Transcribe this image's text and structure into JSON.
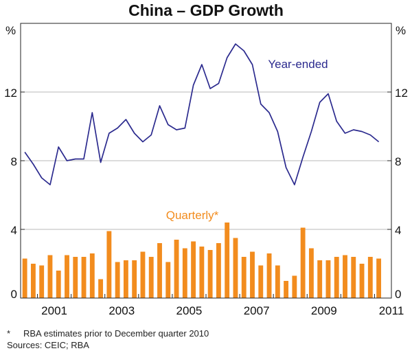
{
  "chart_data": {
    "type": "bar+line",
    "title": "China – GDP Growth",
    "unit_left": "%",
    "unit_right": "%",
    "ylim": [
      0,
      16
    ],
    "yticks": [
      0,
      4,
      8,
      12
    ],
    "xticks": [
      "2001",
      "2003",
      "2005",
      "2007",
      "2009",
      "2011"
    ],
    "xlim": [
      2000.5,
      2011.5
    ],
    "grid": true,
    "series": [
      {
        "name": "Year-ended",
        "type": "line",
        "color": "#2b2a8e",
        "x": [
          2000.625,
          2000.875,
          2001.125,
          2001.375,
          2001.625,
          2001.875,
          2002.125,
          2002.375,
          2002.625,
          2002.875,
          2003.125,
          2003.375,
          2003.625,
          2003.875,
          2004.125,
          2004.375,
          2004.625,
          2004.875,
          2005.125,
          2005.375,
          2005.625,
          2005.875,
          2006.125,
          2006.375,
          2006.625,
          2006.875,
          2007.125,
          2007.375,
          2007.625,
          2007.875,
          2008.125,
          2008.375,
          2008.625,
          2008.875,
          2009.125,
          2009.375,
          2009.625,
          2009.875,
          2010.125,
          2010.375,
          2010.625,
          2010.875,
          2011.125
        ],
        "values": [
          8.5,
          7.8,
          7.0,
          6.6,
          8.8,
          8.0,
          8.1,
          8.1,
          10.8,
          7.9,
          9.6,
          9.9,
          10.4,
          9.6,
          9.1,
          9.5,
          11.2,
          10.1,
          9.8,
          9.9,
          12.4,
          13.6,
          12.2,
          12.5,
          14.0,
          14.8,
          14.4,
          13.6,
          11.3,
          10.8,
          9.7,
          7.6,
          6.6,
          8.2,
          9.7,
          11.4,
          11.9,
          10.3,
          9.6,
          9.8,
          9.7,
          9.5,
          9.1
        ]
      },
      {
        "name": "Quarterly*",
        "type": "bar",
        "color": "#f28c1e",
        "x": [
          2000.625,
          2000.875,
          2001.125,
          2001.375,
          2001.625,
          2001.875,
          2002.125,
          2002.375,
          2002.625,
          2002.875,
          2003.125,
          2003.375,
          2003.625,
          2003.875,
          2004.125,
          2004.375,
          2004.625,
          2004.875,
          2005.125,
          2005.375,
          2005.625,
          2005.875,
          2006.125,
          2006.375,
          2006.625,
          2006.875,
          2007.125,
          2007.375,
          2007.625,
          2007.875,
          2008.125,
          2008.375,
          2008.625,
          2008.875,
          2009.125,
          2009.375,
          2009.625,
          2009.875,
          2010.125,
          2010.375,
          2010.625,
          2010.875,
          2011.125
        ],
        "values": [
          2.3,
          2.0,
          1.9,
          2.5,
          1.6,
          2.5,
          2.4,
          2.4,
          2.6,
          1.1,
          3.9,
          2.1,
          2.2,
          2.2,
          2.7,
          2.4,
          3.2,
          2.1,
          3.4,
          2.9,
          3.3,
          3.0,
          2.8,
          3.2,
          4.4,
          3.5,
          2.4,
          2.7,
          1.9,
          2.6,
          1.9,
          1.0,
          1.3,
          4.1,
          2.9,
          2.2,
          2.2,
          2.4,
          2.5,
          2.4,
          2.0,
          2.4,
          2.3
        ]
      }
    ],
    "annotations": [
      {
        "text": "Year-ended",
        "series": 0,
        "position": "upper-right of peak"
      },
      {
        "text": "Quarterly*",
        "series": 1,
        "position": "above bars, centre"
      }
    ]
  },
  "footnotes": {
    "star": "*",
    "note": "RBA estimates prior to December quarter 2010",
    "sources": "Sources: CEIC; RBA"
  }
}
